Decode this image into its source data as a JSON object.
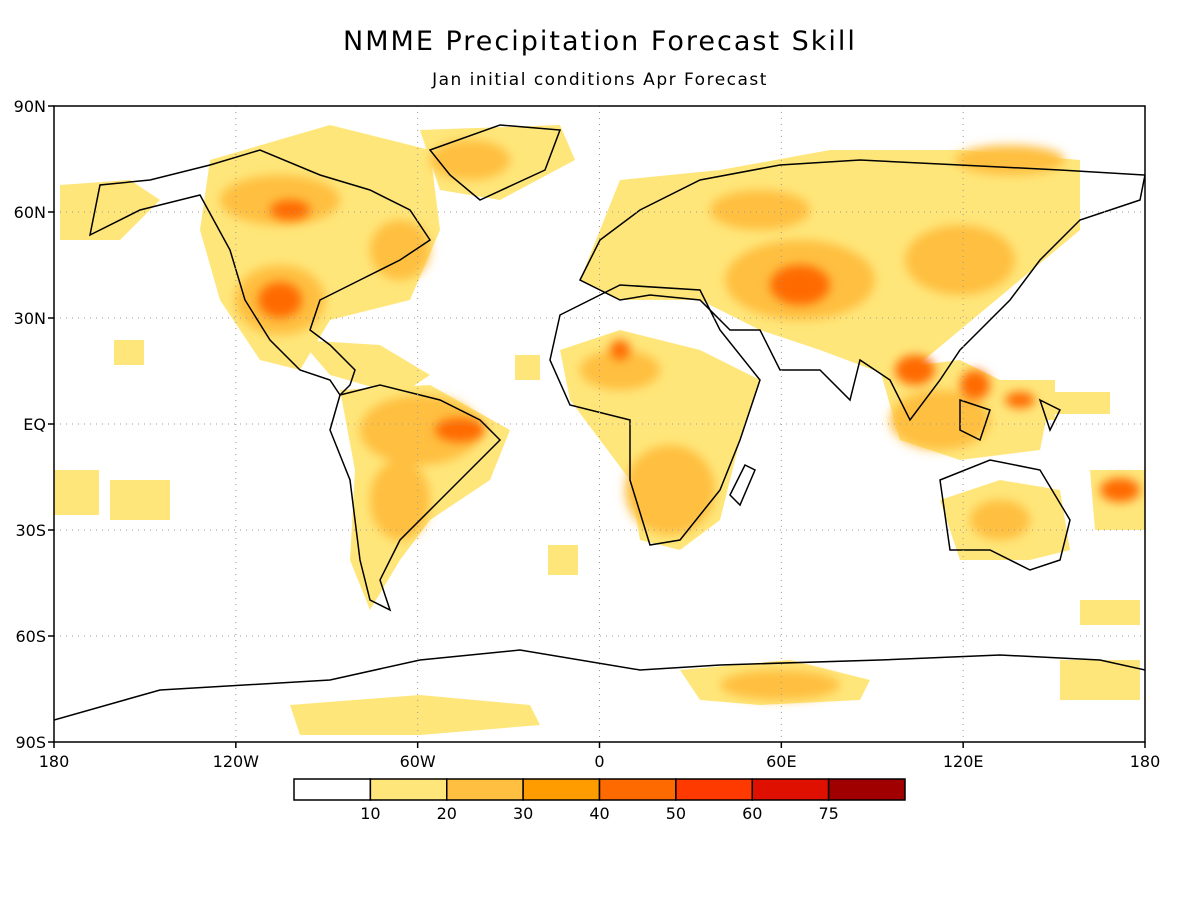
{
  "title": "NMME Precipitation Forecast Skill",
  "subtitle": "Jan initial conditions  Apr Forecast",
  "lat_ticks": [
    "90N",
    "60N",
    "30N",
    "EQ",
    "30S",
    "60S",
    "90S"
  ],
  "lon_ticks": [
    "180",
    "120W",
    "60W",
    "0",
    "60E",
    "120E",
    "180"
  ],
  "colorbar": {
    "labels": [
      "10",
      "20",
      "30",
      "40",
      "50",
      "60",
      "75"
    ],
    "colors": [
      "#ffffff",
      "#ffe67a",
      "#ffbf40",
      "#ff9c00",
      "#ff6a00",
      "#ff3a00",
      "#e01000",
      "#a00000"
    ]
  },
  "grid": true
}
